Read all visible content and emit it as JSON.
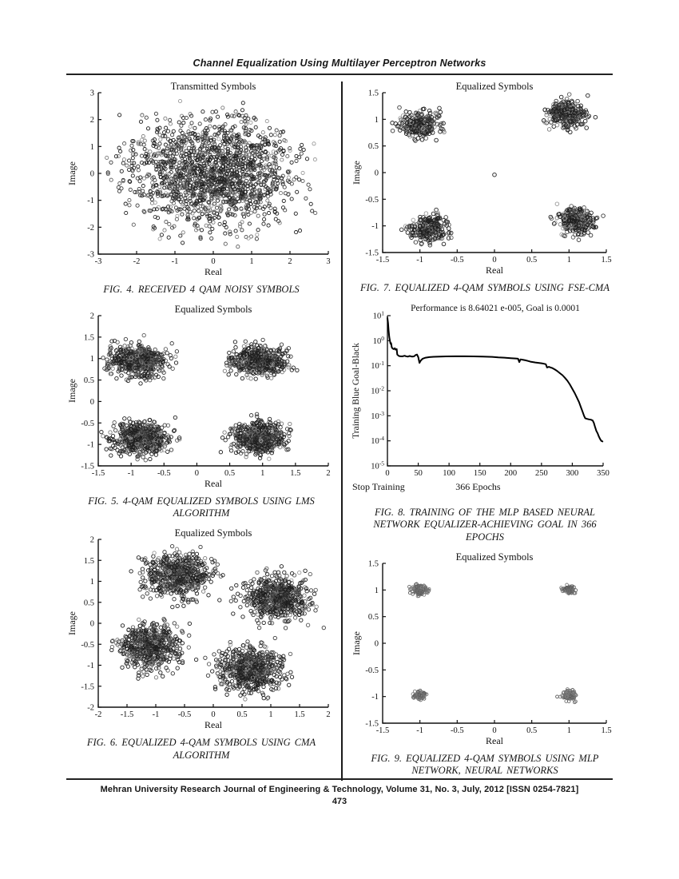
{
  "page": {
    "header_title": "Channel Equalization Using Multilayer Perceptron Networks",
    "footer_line": "Mehran University Research Journal of Engineering & Technology, Volume 31, No. 3, July, 2012 [ISSN 0254-7821]",
    "page_number": "473"
  },
  "chart_data": [
    {
      "id": "fig4",
      "type": "scatter",
      "title": "Transmitted Symbols",
      "caption": "FIG. 4. RECEIVED 4 QAM NOISY SYMBOLS",
      "xlabel": "Real",
      "ylabel": "Image",
      "xlim": [
        -3,
        3
      ],
      "ylim": [
        -3,
        3
      ],
      "xticks": [
        -3,
        -2,
        -1,
        0,
        1,
        2,
        3
      ],
      "yticks": [
        -3,
        -2,
        -1,
        0,
        1,
        2,
        3
      ],
      "marker": "open-circle",
      "marker_color": "#333333",
      "clusters": [
        {
          "cx": 0.0,
          "cy": 0.0,
          "sx": 1.05,
          "sy": 1.0,
          "n": 1700,
          "clip": 2.8
        }
      ]
    },
    {
      "id": "fig5",
      "type": "scatter",
      "title": "Equalized Symbols",
      "caption": "FIG. 5. 4-QAM EQUALIZED SYMBOLS USING LMS ALGORITHM",
      "xlabel": "Real",
      "ylabel": "Image",
      "xlim": [
        -1.5,
        2
      ],
      "ylim": [
        -1.5,
        2
      ],
      "xticks": [
        -1.5,
        -1,
        -0.5,
        0,
        0.5,
        1,
        1.5,
        2
      ],
      "yticks": [
        -1.5,
        -1,
        -0.5,
        0,
        0.5,
        1,
        1.5,
        2
      ],
      "marker": "open-circle",
      "marker_color": "#2a2a2a",
      "clusters": [
        {
          "cx": -0.9,
          "cy": 0.95,
          "sx": 0.2,
          "sy": 0.18,
          "n": 600,
          "clip": 0.6
        },
        {
          "cx": 0.95,
          "cy": 0.95,
          "sx": 0.2,
          "sy": 0.16,
          "n": 600,
          "clip": 0.6
        },
        {
          "cx": -0.85,
          "cy": -0.85,
          "sx": 0.21,
          "sy": 0.19,
          "n": 600,
          "clip": 0.62
        },
        {
          "cx": 0.95,
          "cy": -0.85,
          "sx": 0.19,
          "sy": 0.18,
          "n": 600,
          "clip": 0.6
        }
      ]
    },
    {
      "id": "fig6",
      "type": "scatter",
      "title": "Equalized Symbols",
      "caption": "FIG. 6. EQUALIZED 4-QAM SYMBOLS USING CMA ALGORITHM",
      "xlabel": "Real",
      "ylabel": "Image",
      "xlim": [
        -2,
        2
      ],
      "ylim": [
        -2,
        2
      ],
      "xticks": [
        -2,
        -1.5,
        -1,
        -0.5,
        0,
        0.5,
        1,
        1.5,
        2
      ],
      "yticks": [
        -2,
        -1.5,
        -1,
        -0.5,
        0,
        0.5,
        1,
        1.5,
        2
      ],
      "marker": "open-circle",
      "marker_color": "#2a2a2a",
      "clusters": [
        {
          "cx": -0.62,
          "cy": 1.15,
          "sx": 0.27,
          "sy": 0.24,
          "n": 650,
          "clip": 0.85
        },
        {
          "cx": 1.1,
          "cy": 0.62,
          "sx": 0.27,
          "sy": 0.25,
          "n": 650,
          "clip": 0.85
        },
        {
          "cx": -1.1,
          "cy": -0.55,
          "sx": 0.26,
          "sy": 0.25,
          "n": 650,
          "clip": 0.85
        },
        {
          "cx": 0.65,
          "cy": -1.1,
          "sx": 0.27,
          "sy": 0.26,
          "n": 650,
          "clip": 0.85
        }
      ]
    },
    {
      "id": "fig7",
      "type": "scatter",
      "title": "Equalized Symbols",
      "caption": "FIG. 7. EQUALIZED 4-QAM SYMBOLS USING FSE-CMA",
      "xlabel": "Real",
      "ylabel": "Image",
      "xlim": [
        -1.5,
        1.5
      ],
      "ylim": [
        -1.5,
        1.5
      ],
      "xticks": [
        -1.5,
        -1,
        -0.5,
        0,
        0.5,
        1,
        1.5
      ],
      "yticks": [
        -1.5,
        -1,
        -0.5,
        0,
        0.5,
        1,
        1.5
      ],
      "marker": "open-circle",
      "marker_color": "#2a2a2a",
      "clusters": [
        {
          "cx": -1.02,
          "cy": 0.9,
          "sx": 0.13,
          "sy": 0.12,
          "n": 260,
          "clip": 0.42
        },
        {
          "cx": 0.95,
          "cy": 1.1,
          "sx": 0.14,
          "sy": 0.12,
          "n": 260,
          "clip": 0.42
        },
        {
          "cx": -0.88,
          "cy": -1.05,
          "sx": 0.13,
          "sy": 0.13,
          "n": 260,
          "clip": 0.42
        },
        {
          "cx": 1.08,
          "cy": -0.9,
          "sx": 0.13,
          "sy": 0.12,
          "n": 260,
          "clip": 0.42
        },
        {
          "cx": 0.0,
          "cy": -0.04,
          "sx": 0.0,
          "sy": 0.0,
          "n": 1,
          "clip": 0.01
        }
      ]
    },
    {
      "id": "fig8",
      "type": "line",
      "title": "Performance is 8.64021 e-005, Goal is 0.0001",
      "caption": "FIG. 8. TRAINING OF THE MLP BASED NEURAL NETWORK EQUALIZER-ACHIEVING GOAL IN 366 EPOCHS",
      "xlabel_left": "Stop Training",
      "xlabel_center": "366 Epochs",
      "ylabel": "Training Blue Goal-Black",
      "xlim": [
        0,
        350
      ],
      "xticks": [
        0,
        50,
        100,
        150,
        200,
        250,
        300,
        350
      ],
      "ytick_exponents": [
        1,
        0,
        -1,
        -2,
        -3,
        -4,
        -5
      ],
      "yscale": "log",
      "line_color": "#000000",
      "points": [
        [
          0,
          8
        ],
        [
          1,
          5
        ],
        [
          2,
          2.5
        ],
        [
          3,
          1.4
        ],
        [
          4,
          1.0
        ],
        [
          5,
          0.75
        ],
        [
          6,
          0.8
        ],
        [
          7,
          0.55
        ],
        [
          8,
          0.5
        ],
        [
          10,
          0.46
        ],
        [
          12,
          0.5
        ],
        [
          13,
          0.44
        ],
        [
          15,
          0.46
        ],
        [
          16,
          0.28
        ],
        [
          18,
          0.25
        ],
        [
          20,
          0.24
        ],
        [
          24,
          0.235
        ],
        [
          28,
          0.25
        ],
        [
          30,
          0.24
        ],
        [
          33,
          0.23
        ],
        [
          36,
          0.245
        ],
        [
          40,
          0.23
        ],
        [
          43,
          0.235
        ],
        [
          46,
          0.27
        ],
        [
          48,
          0.28
        ],
        [
          50,
          0.22
        ],
        [
          52,
          0.13
        ],
        [
          54,
          0.16
        ],
        [
          57,
          0.19
        ],
        [
          62,
          0.21
        ],
        [
          68,
          0.22
        ],
        [
          75,
          0.228
        ],
        [
          85,
          0.232
        ],
        [
          95,
          0.235
        ],
        [
          110,
          0.237
        ],
        [
          125,
          0.237
        ],
        [
          140,
          0.235
        ],
        [
          155,
          0.23
        ],
        [
          170,
          0.225
        ],
        [
          180,
          0.215
        ],
        [
          190,
          0.21
        ],
        [
          200,
          0.2
        ],
        [
          208,
          0.195
        ],
        [
          212,
          0.19
        ],
        [
          214,
          0.14
        ],
        [
          216,
          0.18
        ],
        [
          219,
          0.175
        ],
        [
          224,
          0.165
        ],
        [
          228,
          0.155
        ],
        [
          232,
          0.145
        ],
        [
          236,
          0.14
        ],
        [
          240,
          0.135
        ],
        [
          245,
          0.13
        ],
        [
          250,
          0.125
        ],
        [
          254,
          0.12
        ],
        [
          257,
          0.115
        ],
        [
          259,
          0.085
        ],
        [
          262,
          0.09
        ],
        [
          265,
          0.085
        ],
        [
          268,
          0.08
        ],
        [
          272,
          0.07
        ],
        [
          276,
          0.06
        ],
        [
          280,
          0.05
        ],
        [
          284,
          0.042
        ],
        [
          288,
          0.033
        ],
        [
          292,
          0.025
        ],
        [
          296,
          0.018
        ],
        [
          300,
          0.012
        ],
        [
          304,
          0.008
        ],
        [
          308,
          0.005
        ],
        [
          311,
          0.0035
        ],
        [
          314,
          0.0022
        ],
        [
          317,
          0.0014
        ],
        [
          319,
          0.001
        ],
        [
          321,
          0.0008
        ],
        [
          324,
          0.00075
        ],
        [
          327,
          0.00072
        ],
        [
          330,
          0.0007
        ],
        [
          333,
          0.00065
        ],
        [
          335,
          0.00052
        ],
        [
          337,
          0.00035
        ],
        [
          339,
          0.00025
        ],
        [
          341,
          0.0002
        ],
        [
          343,
          0.00015
        ],
        [
          345,
          0.00012
        ],
        [
          347,
          0.0001
        ],
        [
          349,
          9.5e-05
        ]
      ]
    },
    {
      "id": "fig9",
      "type": "scatter",
      "title": "Equalized Symbols",
      "caption": "FIG. 9. EQUALIZED 4-QAM SYMBOLS USING MLP NETWORK, NEURAL NETWORKS",
      "xlabel": "Real",
      "ylabel": "Image",
      "xlim": [
        -1.5,
        1.5
      ],
      "ylim": [
        -1.5,
        1.5
      ],
      "xticks": [
        -1.5,
        -1,
        -0.5,
        0,
        0.5,
        1,
        1.5
      ],
      "yticks": [
        -1.5,
        -1,
        -0.5,
        0,
        0.5,
        1,
        1.5
      ],
      "marker": "open-circle",
      "marker_color": "#6a6a6a",
      "clusters": [
        {
          "cx": -1.0,
          "cy": 1.0,
          "sx": 0.055,
          "sy": 0.05,
          "n": 120,
          "clip": 0.18
        },
        {
          "cx": 1.0,
          "cy": 1.0,
          "sx": 0.035,
          "sy": 0.03,
          "n": 100,
          "clip": 0.12
        },
        {
          "cx": -1.0,
          "cy": -0.98,
          "sx": 0.04,
          "sy": 0.035,
          "n": 100,
          "clip": 0.12
        },
        {
          "cx": 1.0,
          "cy": -0.98,
          "sx": 0.05,
          "sy": 0.045,
          "n": 120,
          "clip": 0.16
        }
      ]
    }
  ]
}
